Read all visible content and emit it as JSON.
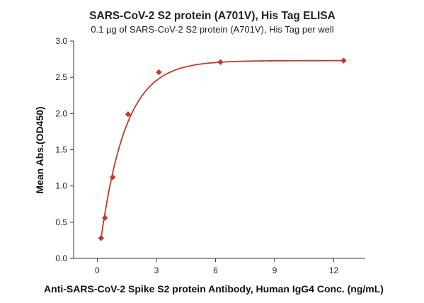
{
  "chart_data": {
    "type": "scatter",
    "title": "SARS-CoV-2 S2 protein (A701V), His Tag ELISA",
    "subtitle": "0.1 µg of SARS-CoV-2 S2 protein (A701V), His Tag per well",
    "xlabel": "Anti-SARS-CoV-2 Spike S2 protein Antibody, Human IgG4 Conc. (ng/mL)",
    "ylabel": "Mean Abs.(OD450)",
    "xlim": [
      -1.2,
      13.6
    ],
    "ylim": [
      0.0,
      3.0
    ],
    "xticks": [
      0,
      3,
      6,
      9,
      12
    ],
    "xtick_labels": [
      "0",
      "3",
      "6",
      "9",
      "12"
    ],
    "yticks": [
      0.0,
      0.5,
      1.0,
      1.5,
      2.0,
      2.5,
      3.0
    ],
    "ytick_labels": [
      "0.0",
      "0.5",
      "1.0",
      "1.5",
      "2.0",
      "2.5",
      "3.0"
    ],
    "grid": false,
    "legend": "none",
    "series": [
      {
        "marker": "diamond",
        "color": "#c0392b",
        "x": [
          0.195,
          0.391,
          0.781,
          1.563,
          3.125,
          6.25,
          12.5
        ],
        "y": [
          0.28,
          0.56,
          1.12,
          1.99,
          2.57,
          2.71,
          2.73
        ]
      }
    ],
    "fit_curve": {
      "model": "exponential-saturation",
      "color": "#c0392b",
      "plateau": 2.73,
      "x_start": 0.195,
      "y_start": 0.28,
      "rate": 0.78
    }
  }
}
